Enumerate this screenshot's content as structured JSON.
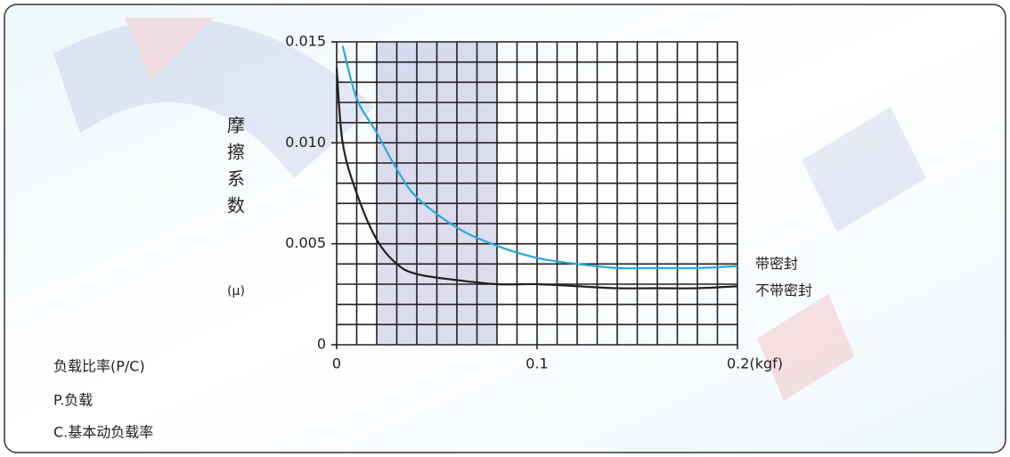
{
  "chart_data": {
    "type": "line",
    "ylabel": "摩擦系数",
    "yunit": "(μ)",
    "notes": [
      "负载比率(P/C)",
      "P.负载",
      "C.基本动负载率"
    ],
    "x": [
      0,
      0.003,
      0.01,
      0.02,
      0.03,
      0.04,
      0.06,
      0.08,
      0.1,
      0.12,
      0.14,
      0.16,
      0.18,
      0.2
    ],
    "series": [
      {
        "name": "带密封",
        "color": "#29a8df",
        "values": [
          null,
          0.0148,
          0.0122,
          0.0105,
          0.0087,
          0.0073,
          0.0058,
          0.0049,
          0.0043,
          0.004,
          0.0038,
          0.0038,
          0.0038,
          0.0039
        ]
      },
      {
        "name": "不带密封",
        "color": "#231f20",
        "values": [
          0.0137,
          0.01,
          0.0075,
          0.0052,
          0.004,
          0.0035,
          0.0032,
          0.003,
          0.003,
          0.0029,
          0.0028,
          0.0028,
          0.0028,
          0.0029
        ]
      }
    ],
    "xlim": [
      0,
      0.2
    ],
    "ylim": [
      0,
      0.015
    ],
    "xticks": [
      0,
      0.1,
      {
        "value": 0.2,
        "label": "0.2(kgf)"
      }
    ],
    "yticks": [
      0,
      0.005,
      {
        "value": 0.01,
        "label": "0.010"
      },
      0.015
    ],
    "xgrid": [
      0,
      0.01,
      0.02,
      0.03,
      0.04,
      0.05,
      0.06,
      0.07,
      0.08,
      0.09,
      0.1,
      0.11,
      0.12,
      0.13,
      0.14,
      0.15,
      0.16,
      0.17,
      0.18,
      0.19,
      0.2
    ],
    "ygrid": [
      0,
      0.001,
      0.002,
      0.003,
      0.004,
      0.005,
      0.006,
      0.007,
      0.008,
      0.009,
      0.01,
      0.011,
      0.012,
      0.013,
      0.014,
      0.015
    ],
    "grid": true
  }
}
